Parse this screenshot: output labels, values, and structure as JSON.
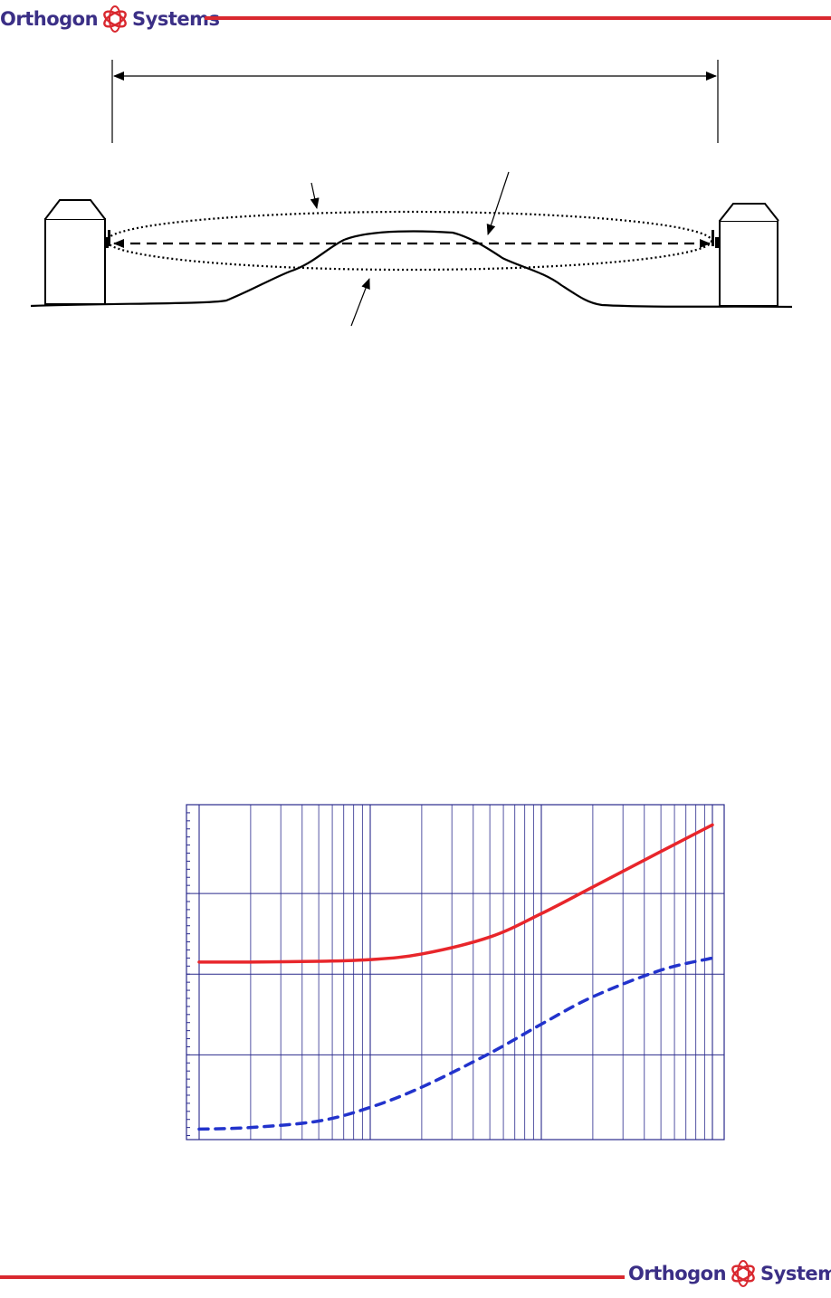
{
  "header": {
    "logo": {
      "word1": "Orthogon",
      "word2": "Systems",
      "icon": "orthogon-globe-logo-icon"
    }
  },
  "footer": {
    "logo": {
      "word1": "Orthogon",
      "word2": "Systems",
      "icon": "orthogon-globe-logo-icon"
    }
  },
  "colors": {
    "brand_red": "#d9282f",
    "brand_navy": "#3b2f86",
    "grid_blue": "#2a2a8c",
    "series_solid": "#e8262b",
    "series_dashed": "#2233cc"
  },
  "diagram": {
    "icons": [
      "left-building-icon",
      "right-building-icon",
      "left-antenna-icon",
      "right-antenna-icon"
    ]
  },
  "chart_data": {
    "type": "line",
    "x_scale": "log",
    "grid": true,
    "legend": "none",
    "x_decades": 3,
    "series": [
      {
        "style": "solid",
        "color": "#e8262b",
        "x": [
          1,
          2,
          5,
          10,
          20,
          50,
          100,
          200,
          500,
          1000
        ],
        "y": [
          2.15,
          2.15,
          2.16,
          2.18,
          2.25,
          2.46,
          2.75,
          3.08,
          3.52,
          3.85
        ]
      },
      {
        "style": "dashed",
        "color": "#2233cc",
        "x": [
          1,
          2,
          5,
          10,
          20,
          50,
          100,
          200,
          500,
          1000
        ],
        "y": [
          0.08,
          0.1,
          0.18,
          0.35,
          0.6,
          1.02,
          1.38,
          1.72,
          2.05,
          2.2
        ]
      }
    ],
    "ylim": [
      0,
      4
    ]
  }
}
